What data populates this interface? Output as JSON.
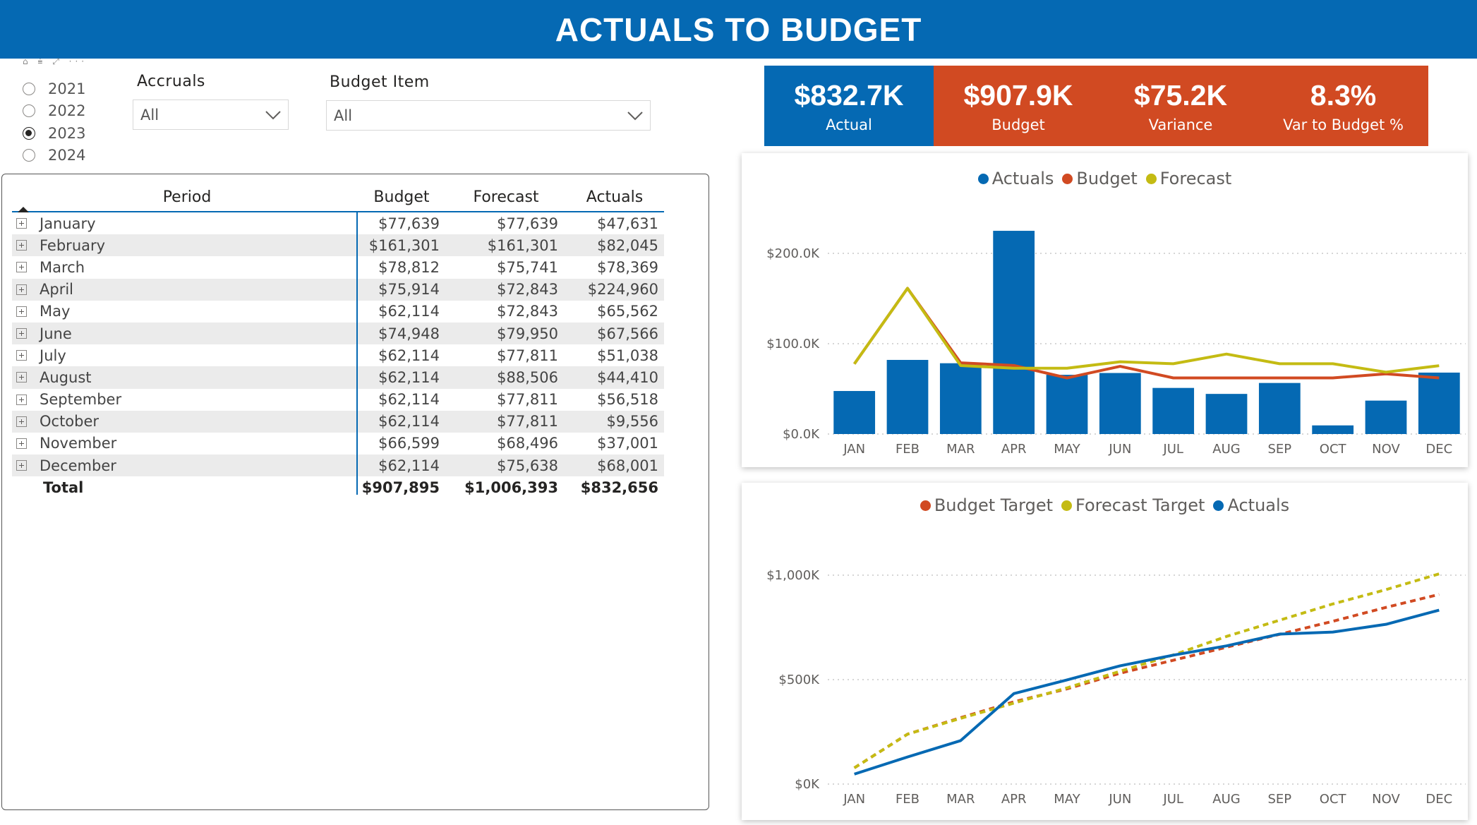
{
  "header": {
    "title": "ACTUALS TO BUDGET"
  },
  "slicer_toolbar": "⌂ ⩧ ⤢ ···",
  "year_slicer": {
    "options": [
      {
        "label": "2021",
        "selected": false
      },
      {
        "label": "2022",
        "selected": false
      },
      {
        "label": "2023",
        "selected": true
      },
      {
        "label": "2024",
        "selected": false
      }
    ]
  },
  "filters": {
    "accruals": {
      "label": "Accruals",
      "value": "All"
    },
    "budget_item": {
      "label": "Budget Item",
      "value": "All"
    }
  },
  "table": {
    "headers": {
      "period": "Period",
      "budget": "Budget",
      "forecast": "Forecast",
      "actuals": "Actuals"
    },
    "rows": [
      {
        "period": "January",
        "budget": "$77,639",
        "forecast": "$77,639",
        "actuals": "$47,631"
      },
      {
        "period": "February",
        "budget": "$161,301",
        "forecast": "$161,301",
        "actuals": "$82,045"
      },
      {
        "period": "March",
        "budget": "$78,812",
        "forecast": "$75,741",
        "actuals": "$78,369"
      },
      {
        "period": "April",
        "budget": "$75,914",
        "forecast": "$72,843",
        "actuals": "$224,960"
      },
      {
        "period": "May",
        "budget": "$62,114",
        "forecast": "$72,843",
        "actuals": "$65,562"
      },
      {
        "period": "June",
        "budget": "$74,948",
        "forecast": "$79,950",
        "actuals": "$67,566"
      },
      {
        "period": "July",
        "budget": "$62,114",
        "forecast": "$77,811",
        "actuals": "$51,038"
      },
      {
        "period": "August",
        "budget": "$62,114",
        "forecast": "$88,506",
        "actuals": "$44,410"
      },
      {
        "period": "September",
        "budget": "$62,114",
        "forecast": "$77,811",
        "actuals": "$56,518"
      },
      {
        "period": "October",
        "budget": "$62,114",
        "forecast": "$77,811",
        "actuals": "$9,556"
      },
      {
        "period": "November",
        "budget": "$66,599",
        "forecast": "$68,496",
        "actuals": "$37,001"
      },
      {
        "period": "December",
        "budget": "$62,114",
        "forecast": "$75,638",
        "actuals": "$68,001"
      }
    ],
    "total": {
      "period": "Total",
      "budget": "$907,895",
      "forecast": "$1,006,393",
      "actuals": "$832,656"
    }
  },
  "kpis": [
    {
      "value": "$832.7K",
      "label": "Actual",
      "color": "#0569b3"
    },
    {
      "value": "$907.9K",
      "label": "Budget",
      "color": "#d14a22"
    },
    {
      "value": "$75.2K",
      "label": "Variance",
      "color": "#d14a22"
    },
    {
      "value": "8.3%",
      "label": "Var to Budget %",
      "color": "#d14a22"
    }
  ],
  "colors": {
    "actuals": "#0569b3",
    "budget": "#d14a22",
    "forecast": "#c4bb13",
    "header": "#0569b3"
  },
  "chart_data": [
    {
      "type": "bar",
      "title": "",
      "categories": [
        "JAN",
        "FEB",
        "MAR",
        "APR",
        "MAY",
        "JUN",
        "JUL",
        "AUG",
        "SEP",
        "OCT",
        "NOV",
        "DEC"
      ],
      "series": [
        {
          "name": "Actuals",
          "kind": "bar",
          "values": [
            47631,
            82045,
            78369,
            224960,
            65562,
            67566,
            51038,
            44410,
            56518,
            9556,
            37001,
            68001
          ]
        },
        {
          "name": "Budget",
          "kind": "line",
          "values": [
            77639,
            161301,
            78812,
            75914,
            62114,
            74948,
            62114,
            62114,
            62114,
            62114,
            66599,
            62114
          ]
        },
        {
          "name": "Forecast",
          "kind": "line",
          "values": [
            77639,
            161301,
            75741,
            72843,
            72843,
            79950,
            77811,
            88506,
            77811,
            77811,
            68496,
            75638
          ]
        }
      ],
      "yticks": [
        "$0.0K",
        "$100.0K",
        "$200.0K"
      ],
      "ytick_values": [
        0,
        100000,
        200000
      ],
      "ylim": [
        0,
        225000
      ],
      "legend": "top-center",
      "grid": true
    },
    {
      "type": "line",
      "title": "",
      "categories": [
        "JAN",
        "FEB",
        "MAR",
        "APR",
        "MAY",
        "JUN",
        "JUL",
        "AUG",
        "SEP",
        "OCT",
        "NOV",
        "DEC"
      ],
      "series": [
        {
          "name": "Budget Target",
          "style": "dotted",
          "values": [
            77639,
            238940,
            317752,
            393666,
            455780,
            530728,
            592842,
            654956,
            717070,
            779184,
            845783,
            907897
          ]
        },
        {
          "name": "Forecast Target",
          "style": "dotted",
          "values": [
            77639,
            238940,
            314681,
            387524,
            460367,
            540317,
            618128,
            706634,
            784445,
            862256,
            930752,
            1006390
          ]
        },
        {
          "name": "Actuals",
          "style": "solid",
          "values": [
            47631,
            129676,
            208045,
            433005,
            498567,
            566133,
            617171,
            661581,
            718099,
            727655,
            764656,
            832657
          ]
        }
      ],
      "yticks": [
        "$0K",
        "$500K",
        "$1,000K"
      ],
      "ytick_values": [
        0,
        500000,
        1000000
      ],
      "ylim": [
        0,
        1000000
      ],
      "legend": "top-center",
      "grid": true
    }
  ]
}
